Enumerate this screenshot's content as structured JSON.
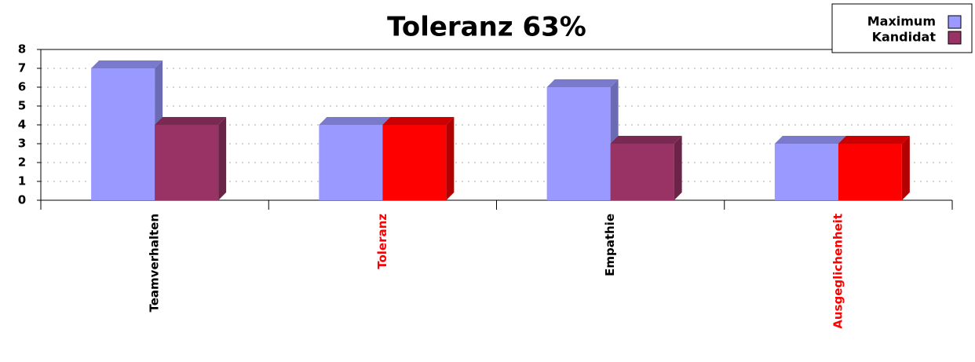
{
  "chart_data": {
    "type": "bar3d",
    "title": "Toleranz 63%",
    "categories": [
      "Teamverhalten",
      "Toleranz",
      "Empathie",
      "Ausgeglichenheit"
    ],
    "category_colors": [
      "#000000",
      "#ff0000",
      "#000000",
      "#ff0000"
    ],
    "series": [
      {
        "name": "Maximum",
        "color": "#9999ff",
        "values": [
          7,
          4,
          6,
          3
        ]
      },
      {
        "name": "Kandidat",
        "color": "#993366",
        "point_colors": [
          "#993366",
          "#ff0000",
          "#993366",
          "#ff0000"
        ],
        "values": [
          4,
          4,
          3,
          3
        ]
      }
    ],
    "ylim": [
      0,
      8
    ],
    "yticks": [
      0,
      1,
      2,
      3,
      4,
      5,
      6,
      7,
      8
    ],
    "grid": true,
    "legend": "top-right"
  }
}
